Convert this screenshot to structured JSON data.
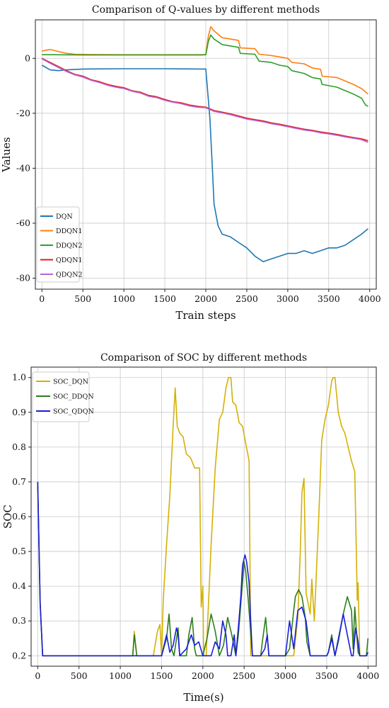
{
  "chart_data": [
    {
      "type": "line",
      "title": "Comparison of Q-values by different methods",
      "xlabel": "Train steps",
      "ylabel": "Values",
      "xlim": [
        -80,
        4080
      ],
      "ylim": [
        -84,
        14
      ],
      "xticks": [
        0,
        500,
        1000,
        1500,
        2000,
        2500,
        3000,
        3500,
        4000
      ],
      "yticks": [
        0,
        -20,
        -40,
        -60,
        -80
      ],
      "grid": true,
      "legend_position": "lower-left",
      "series": [
        {
          "name": "DQN",
          "color": "#1f77b4",
          "x": [
            0,
            100,
            200,
            300,
            500,
            1000,
            1500,
            1950,
            2000,
            2050,
            2080,
            2100,
            2150,
            2200,
            2300,
            2400,
            2500,
            2600,
            2700,
            2800,
            2900,
            3000,
            3100,
            3200,
            3300,
            3400,
            3500,
            3600,
            3700,
            3800,
            3900,
            3980
          ],
          "y": [
            -2.5,
            -4.2,
            -4.5,
            -4.2,
            -3.9,
            -3.8,
            -3.8,
            -3.9,
            -3.9,
            -22,
            -40,
            -53,
            -61,
            -64,
            -65,
            -67,
            -69,
            -72,
            -74,
            -73,
            -72,
            -71,
            -71,
            -70,
            -71,
            -70,
            -69,
            -69,
            -68,
            -66,
            -64,
            -62
          ]
        },
        {
          "name": "DDQN1",
          "color": "#ff7f0e",
          "x": [
            0,
            50,
            100,
            200,
            300,
            400,
            600,
            1000,
            1500,
            1950,
            2000,
            2030,
            2060,
            2100,
            2200,
            2300,
            2400,
            2420,
            2600,
            2650,
            2800,
            2900,
            3000,
            3050,
            3200,
            3300,
            3400,
            3420,
            3600,
            3800,
            3900,
            3980
          ],
          "y": [
            2.6,
            3.0,
            3.2,
            2.5,
            1.8,
            1.5,
            1.4,
            1.3,
            1.3,
            1.3,
            1.4,
            8,
            11.5,
            10,
            7.5,
            7.0,
            6.5,
            3.8,
            3.5,
            1.5,
            1.0,
            0.5,
            0.0,
            -1.5,
            -2.0,
            -3.5,
            -4.0,
            -6.5,
            -7.0,
            -9.5,
            -11.0,
            -13.0
          ]
        },
        {
          "name": "DDQN2",
          "color": "#2ca02c",
          "x": [
            0,
            100,
            500,
            1000,
            1500,
            1950,
            2000,
            2030,
            2060,
            2100,
            2200,
            2300,
            2400,
            2420,
            2600,
            2650,
            2800,
            2900,
            3000,
            3050,
            3200,
            3300,
            3400,
            3420,
            3600,
            3800,
            3900,
            3950,
            3980
          ],
          "y": [
            1.3,
            1.3,
            1.2,
            1.2,
            1.2,
            1.2,
            1.3,
            6.0,
            8.5,
            7.0,
            5.0,
            4.5,
            4.0,
            1.8,
            1.5,
            -1.0,
            -1.5,
            -2.5,
            -3.0,
            -4.5,
            -5.5,
            -7.0,
            -7.5,
            -9.5,
            -10.5,
            -13.0,
            -14.5,
            -17.0,
            -17.5
          ]
        },
        {
          "name": "QDQN1",
          "color": "#e31a1c",
          "x": [
            0,
            100,
            200,
            300,
            400,
            500,
            600,
            700,
            800,
            900,
            1000,
            1100,
            1200,
            1300,
            1400,
            1500,
            1600,
            1700,
            1800,
            1900,
            2000,
            2100,
            2200,
            2300,
            2400,
            2500,
            2600,
            2700,
            2800,
            2900,
            3000,
            3100,
            3200,
            3300,
            3400,
            3500,
            3600,
            3700,
            3800,
            3900,
            3980
          ],
          "y": [
            0.0,
            -1.5,
            -3.0,
            -4.5,
            -5.8,
            -6.5,
            -7.8,
            -8.5,
            -9.5,
            -10.2,
            -10.7,
            -11.8,
            -12.3,
            -13.5,
            -14.0,
            -15.0,
            -15.8,
            -16.2,
            -17.0,
            -17.5,
            -17.8,
            -19.0,
            -19.6,
            -20.2,
            -21.0,
            -21.8,
            -22.3,
            -22.8,
            -23.5,
            -24.0,
            -24.6,
            -25.2,
            -25.8,
            -26.2,
            -26.8,
            -27.2,
            -27.7,
            -28.3,
            -28.8,
            -29.3,
            -30.0
          ]
        },
        {
          "name": "QDQN2",
          "color": "#b565d8",
          "x": [
            0,
            100,
            200,
            300,
            400,
            500,
            600,
            700,
            800,
            900,
            1000,
            1100,
            1200,
            1300,
            1400,
            1500,
            1600,
            1700,
            1800,
            1900,
            2000,
            2100,
            2200,
            2300,
            2400,
            2500,
            2600,
            2700,
            2800,
            2900,
            3000,
            3100,
            3200,
            3300,
            3400,
            3500,
            3600,
            3700,
            3800,
            3900,
            3980
          ],
          "y": [
            -0.2,
            -1.8,
            -3.3,
            -4.8,
            -6.0,
            -6.8,
            -8.0,
            -8.8,
            -9.8,
            -10.5,
            -11.0,
            -12.0,
            -12.6,
            -13.8,
            -14.3,
            -15.3,
            -16.0,
            -16.5,
            -17.3,
            -17.8,
            -18.0,
            -19.3,
            -19.9,
            -20.5,
            -21.3,
            -22.1,
            -22.6,
            -23.1,
            -23.8,
            -24.3,
            -24.9,
            -25.5,
            -26.1,
            -26.5,
            -27.1,
            -27.5,
            -28.0,
            -28.6,
            -29.1,
            -29.6,
            -30.6
          ]
        }
      ]
    },
    {
      "type": "line",
      "title": "Comparison of SOC by different methods",
      "xlabel": "Time(s)",
      "ylabel": "SOC",
      "xlim": [
        -80,
        4100
      ],
      "ylim": [
        0.17,
        1.03
      ],
      "xticks": [
        0,
        500,
        1000,
        1500,
        2000,
        2500,
        3000,
        3500,
        4000
      ],
      "yticks": [
        0.2,
        0.3,
        0.4,
        0.5,
        0.6,
        0.7,
        0.8,
        0.9,
        1.0
      ],
      "grid": true,
      "legend_position": "upper-left",
      "series": [
        {
          "name": "SOC_DQN",
          "color": "#d4b106",
          "x": [
            0,
            30,
            60,
            200,
            400,
            800,
            1100,
            1150,
            1170,
            1200,
            1400,
            1450,
            1480,
            1500,
            1520,
            1560,
            1600,
            1640,
            1665,
            1690,
            1720,
            1760,
            1800,
            1850,
            1900,
            1960,
            1980,
            2000,
            2010,
            2040,
            2100,
            2150,
            2200,
            2240,
            2280,
            2310,
            2340,
            2360,
            2400,
            2440,
            2480,
            2520,
            2560,
            2580,
            2620,
            2700,
            2800,
            2900,
            3000,
            3100,
            3150,
            3180,
            3200,
            3225,
            3250,
            3300,
            3320,
            3350,
            3400,
            3440,
            3480,
            3520,
            3560,
            3580,
            3600,
            3640,
            3680,
            3720,
            3760,
            3800,
            3840,
            3870,
            3880,
            3900,
            4000
          ],
          "y": [
            0.7,
            0.35,
            0.2,
            0.2,
            0.2,
            0.2,
            0.2,
            0.2,
            0.27,
            0.2,
            0.2,
            0.27,
            0.29,
            0.2,
            0.36,
            0.52,
            0.66,
            0.86,
            0.97,
            0.86,
            0.84,
            0.83,
            0.78,
            0.77,
            0.74,
            0.74,
            0.34,
            0.4,
            0.2,
            0.2,
            0.52,
            0.74,
            0.88,
            0.9,
            0.97,
            1.0,
            1.0,
            0.93,
            0.92,
            0.87,
            0.86,
            0.81,
            0.76,
            0.2,
            0.2,
            0.2,
            0.2,
            0.2,
            0.2,
            0.2,
            0.31,
            0.5,
            0.67,
            0.71,
            0.38,
            0.32,
            0.42,
            0.3,
            0.58,
            0.82,
            0.88,
            0.92,
            0.99,
            1.0,
            1.0,
            0.9,
            0.86,
            0.84,
            0.8,
            0.76,
            0.73,
            0.36,
            0.41,
            0.2,
            0.2
          ]
        },
        {
          "name": "SOC_DDQN",
          "color": "#2e7d1e",
          "x": [
            0,
            30,
            60,
            200,
            400,
            800,
            1100,
            1150,
            1170,
            1200,
            1500,
            1560,
            1590,
            1620,
            1650,
            1700,
            1720,
            1760,
            1800,
            1830,
            1870,
            1900,
            1920,
            1950,
            2000,
            2050,
            2100,
            2150,
            2200,
            2250,
            2300,
            2350,
            2400,
            2430,
            2470,
            2500,
            2520,
            2550,
            2600,
            2650,
            2700,
            2720,
            2760,
            2800,
            3000,
            3050,
            3100,
            3120,
            3160,
            3200,
            3240,
            3260,
            3300,
            3400,
            3500,
            3520,
            3560,
            3600,
            3640,
            3700,
            3750,
            3800,
            3820,
            3840,
            3860,
            3880,
            3900,
            3980,
            4000
          ],
          "y": [
            0.7,
            0.35,
            0.2,
            0.2,
            0.2,
            0.2,
            0.2,
            0.2,
            0.26,
            0.2,
            0.2,
            0.25,
            0.32,
            0.22,
            0.2,
            0.28,
            0.2,
            0.2,
            0.2,
            0.26,
            0.31,
            0.22,
            0.2,
            0.2,
            0.2,
            0.25,
            0.32,
            0.27,
            0.2,
            0.23,
            0.31,
            0.26,
            0.2,
            0.26,
            0.38,
            0.47,
            0.44,
            0.36,
            0.2,
            0.2,
            0.2,
            0.24,
            0.31,
            0.2,
            0.2,
            0.22,
            0.33,
            0.37,
            0.39,
            0.37,
            0.31,
            0.24,
            0.2,
            0.2,
            0.2,
            0.21,
            0.26,
            0.2,
            0.24,
            0.32,
            0.37,
            0.33,
            0.22,
            0.34,
            0.27,
            0.21,
            0.2,
            0.2,
            0.25
          ]
        },
        {
          "name": "SOC_QDQN",
          "color": "#1c1cdb",
          "x": [
            0,
            30,
            60,
            200,
            400,
            800,
            1100,
            1200,
            1400,
            1500,
            1520,
            1560,
            1600,
            1640,
            1680,
            1700,
            1720,
            1760,
            1800,
            1860,
            1900,
            1950,
            2000,
            2050,
            2100,
            2150,
            2200,
            2240,
            2280,
            2300,
            2340,
            2380,
            2400,
            2440,
            2460,
            2480,
            2510,
            2530,
            2560,
            2580,
            2600,
            2700,
            2750,
            2780,
            2800,
            2850,
            2900,
            3000,
            3050,
            3100,
            3150,
            3200,
            3250,
            3300,
            3400,
            3500,
            3520,
            3560,
            3600,
            3650,
            3700,
            3750,
            3800,
            3820,
            3850,
            3880,
            3900,
            3980,
            4000
          ],
          "y": [
            0.7,
            0.35,
            0.2,
            0.2,
            0.2,
            0.2,
            0.2,
            0.2,
            0.2,
            0.2,
            0.22,
            0.26,
            0.21,
            0.23,
            0.28,
            0.26,
            0.2,
            0.21,
            0.22,
            0.26,
            0.23,
            0.24,
            0.2,
            0.2,
            0.2,
            0.24,
            0.22,
            0.3,
            0.26,
            0.2,
            0.2,
            0.26,
            0.2,
            0.31,
            0.37,
            0.46,
            0.49,
            0.47,
            0.41,
            0.3,
            0.2,
            0.2,
            0.22,
            0.26,
            0.2,
            0.2,
            0.2,
            0.2,
            0.3,
            0.22,
            0.33,
            0.34,
            0.3,
            0.2,
            0.2,
            0.2,
            0.21,
            0.25,
            0.2,
            0.26,
            0.32,
            0.26,
            0.2,
            0.2,
            0.28,
            0.24,
            0.2,
            0.2,
            0.21
          ]
        }
      ]
    }
  ]
}
